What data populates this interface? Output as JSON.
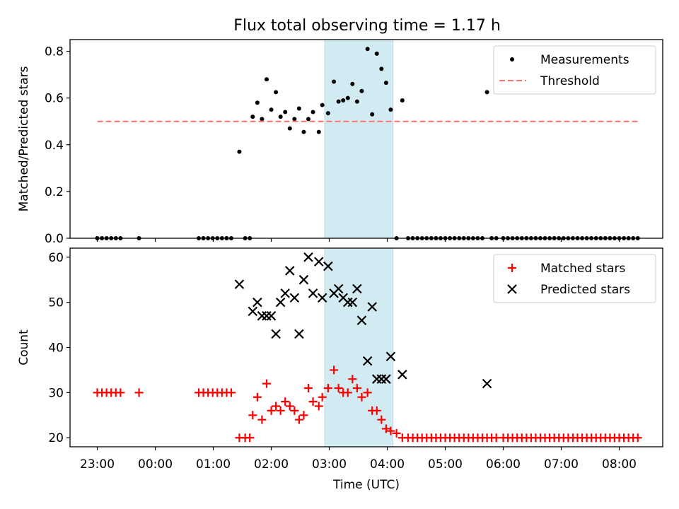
{
  "chart_data": [
    {
      "type": "scatter",
      "title": "Flux total observing time = 1.17 h",
      "ylabel": "Matched/Predicted stars",
      "ylim": [
        0,
        0.85
      ],
      "xlim_hours": [
        -0.47,
        9.75
      ],
      "yticks": [
        0.0,
        0.2,
        0.4,
        0.6,
        0.8
      ],
      "ytick_labels": [
        "0.0",
        "0.2",
        "0.4",
        "0.6",
        "0.8"
      ],
      "shaded_span": {
        "x0_hours": 3.92,
        "x1_hours": 5.1,
        "color": "#add8e6"
      },
      "legend_position": "top-right",
      "series": [
        {
          "name": "Measurements",
          "marker": "dot",
          "color": "#000000",
          "points": [
            [
              0.0,
              0
            ],
            [
              0.08,
              0
            ],
            [
              0.16,
              0
            ],
            [
              0.24,
              0
            ],
            [
              0.32,
              0
            ],
            [
              0.4,
              0
            ],
            [
              0.72,
              0
            ],
            [
              1.75,
              0
            ],
            [
              1.83,
              0
            ],
            [
              1.91,
              0
            ],
            [
              1.99,
              0
            ],
            [
              2.07,
              0
            ],
            [
              2.15,
              0
            ],
            [
              2.23,
              0
            ],
            [
              2.31,
              0
            ],
            [
              2.45,
              0.37
            ],
            [
              2.55,
              0
            ],
            [
              2.63,
              0
            ],
            [
              2.68,
              0.52
            ],
            [
              2.76,
              0.58
            ],
            [
              2.84,
              0.51
            ],
            [
              2.92,
              0.68
            ],
            [
              3.0,
              0.55
            ],
            [
              3.08,
              0.625
            ],
            [
              3.16,
              0.52
            ],
            [
              3.24,
              0.54
            ],
            [
              3.32,
              0.47
            ],
            [
              3.4,
              0.51
            ],
            [
              3.48,
              0.555
            ],
            [
              3.56,
              0.455
            ],
            [
              3.64,
              0.51
            ],
            [
              3.72,
              0.54
            ],
            [
              3.82,
              0.455
            ],
            [
              3.88,
              0.57
            ],
            [
              3.98,
              0.535
            ],
            [
              4.08,
              0.67
            ],
            [
              4.16,
              0.585
            ],
            [
              4.24,
              0.59
            ],
            [
              4.32,
              0.6
            ],
            [
              4.4,
              0.66
            ],
            [
              4.48,
              0.585
            ],
            [
              4.56,
              0.63
            ],
            [
              4.66,
              0.81
            ],
            [
              4.74,
              0.53
            ],
            [
              4.82,
              0.79
            ],
            [
              4.9,
              0.725
            ],
            [
              4.98,
              0.665
            ],
            [
              5.06,
              0.55
            ],
            [
              5.16,
              0
            ],
            [
              5.26,
              0.59
            ],
            [
              5.36,
              0
            ],
            [
              5.44,
              0
            ],
            [
              5.52,
              0
            ],
            [
              5.6,
              0
            ],
            [
              5.68,
              0
            ],
            [
              5.76,
              0
            ],
            [
              5.84,
              0
            ],
            [
              5.92,
              0
            ],
            [
              6.0,
              0
            ],
            [
              6.08,
              0
            ],
            [
              6.16,
              0
            ],
            [
              6.24,
              0
            ],
            [
              6.32,
              0
            ],
            [
              6.4,
              0
            ],
            [
              6.48,
              0
            ],
            [
              6.56,
              0
            ],
            [
              6.64,
              0
            ],
            [
              6.72,
              0.625
            ],
            [
              6.8,
              0
            ],
            [
              6.88,
              0
            ],
            [
              7.0,
              0
            ],
            [
              7.08,
              0
            ],
            [
              7.16,
              0
            ],
            [
              7.24,
              0
            ],
            [
              7.32,
              0
            ],
            [
              7.4,
              0
            ],
            [
              7.48,
              0
            ],
            [
              7.56,
              0
            ],
            [
              7.64,
              0
            ],
            [
              7.72,
              0
            ],
            [
              7.8,
              0
            ],
            [
              7.88,
              0
            ],
            [
              7.96,
              0
            ],
            [
              8.04,
              0
            ],
            [
              8.12,
              0
            ],
            [
              8.2,
              0
            ],
            [
              8.28,
              0
            ],
            [
              8.36,
              0
            ],
            [
              8.44,
              0
            ],
            [
              8.52,
              0
            ],
            [
              8.6,
              0
            ],
            [
              8.68,
              0
            ],
            [
              8.76,
              0
            ],
            [
              8.84,
              0
            ],
            [
              8.92,
              0
            ],
            [
              9.0,
              0
            ],
            [
              9.08,
              0
            ],
            [
              9.16,
              0
            ],
            [
              9.24,
              0
            ],
            [
              9.32,
              0
            ]
          ]
        },
        {
          "name": "Threshold",
          "style": "dashed-line",
          "color": "#ff7070",
          "points": [
            [
              0.0,
              0.5
            ],
            [
              9.32,
              0.5
            ]
          ]
        }
      ]
    },
    {
      "type": "scatter",
      "xlabel": "Time (UTC)",
      "ylabel": "Count",
      "ylim": [
        18,
        62
      ],
      "xlim_hours": [
        -0.47,
        9.75
      ],
      "yticks": [
        20,
        30,
        40,
        50,
        60
      ],
      "ytick_labels": [
        "20",
        "30",
        "40",
        "50",
        "60"
      ],
      "xticks_hours": [
        0,
        1,
        2,
        3,
        4,
        5,
        6,
        7,
        8,
        9
      ],
      "xtick_labels": [
        "23:00",
        "00:00",
        "01:00",
        "02:00",
        "03:00",
        "04:00",
        "05:00",
        "06:00",
        "07:00",
        "08:00"
      ],
      "shaded_span": {
        "x0_hours": 3.92,
        "x1_hours": 5.1,
        "color": "#add8e6"
      },
      "legend_position": "top-right",
      "series": [
        {
          "name": "Matched stars",
          "marker": "plus",
          "color": "#ff0000",
          "points": [
            [
              0.0,
              30
            ],
            [
              0.08,
              30
            ],
            [
              0.16,
              30
            ],
            [
              0.24,
              30
            ],
            [
              0.32,
              30
            ],
            [
              0.4,
              30
            ],
            [
              0.72,
              30
            ],
            [
              1.75,
              30
            ],
            [
              1.83,
              30
            ],
            [
              1.91,
              30
            ],
            [
              1.99,
              30
            ],
            [
              2.07,
              30
            ],
            [
              2.15,
              30
            ],
            [
              2.23,
              30
            ],
            [
              2.31,
              30
            ],
            [
              2.45,
              20
            ],
            [
              2.55,
              20
            ],
            [
              2.63,
              20
            ],
            [
              2.68,
              25
            ],
            [
              2.76,
              29
            ],
            [
              2.84,
              24
            ],
            [
              2.92,
              32
            ],
            [
              3.0,
              26
            ],
            [
              3.08,
              27
            ],
            [
              3.16,
              26
            ],
            [
              3.24,
              28
            ],
            [
              3.32,
              27
            ],
            [
              3.4,
              26
            ],
            [
              3.48,
              24
            ],
            [
              3.56,
              25
            ],
            [
              3.64,
              31
            ],
            [
              3.72,
              28
            ],
            [
              3.82,
              27
            ],
            [
              3.88,
              29
            ],
            [
              3.98,
              31
            ],
            [
              4.08,
              35
            ],
            [
              4.16,
              31
            ],
            [
              4.24,
              30
            ],
            [
              4.32,
              30
            ],
            [
              4.4,
              33
            ],
            [
              4.48,
              31
            ],
            [
              4.56,
              29
            ],
            [
              4.66,
              30
            ],
            [
              4.74,
              26
            ],
            [
              4.82,
              26
            ],
            [
              4.9,
              24
            ],
            [
              4.98,
              22
            ],
            [
              5.06,
              21.5
            ],
            [
              5.16,
              21
            ],
            [
              5.26,
              20
            ],
            [
              5.36,
              20
            ],
            [
              5.44,
              20
            ],
            [
              5.52,
              20
            ],
            [
              5.6,
              20
            ],
            [
              5.68,
              20
            ],
            [
              5.76,
              20
            ],
            [
              5.84,
              20
            ],
            [
              5.92,
              20
            ],
            [
              6.0,
              20
            ],
            [
              6.08,
              20
            ],
            [
              6.16,
              20
            ],
            [
              6.24,
              20
            ],
            [
              6.32,
              20
            ],
            [
              6.4,
              20
            ],
            [
              6.48,
              20
            ],
            [
              6.56,
              20
            ],
            [
              6.64,
              20
            ],
            [
              6.72,
              20
            ],
            [
              6.8,
              20
            ],
            [
              6.88,
              20
            ],
            [
              7.0,
              20
            ],
            [
              7.08,
              20
            ],
            [
              7.16,
              20
            ],
            [
              7.24,
              20
            ],
            [
              7.32,
              20
            ],
            [
              7.4,
              20
            ],
            [
              7.48,
              20
            ],
            [
              7.56,
              20
            ],
            [
              7.64,
              20
            ],
            [
              7.72,
              20
            ],
            [
              7.8,
              20
            ],
            [
              7.88,
              20
            ],
            [
              7.96,
              20
            ],
            [
              8.04,
              20
            ],
            [
              8.12,
              20
            ],
            [
              8.2,
              20
            ],
            [
              8.28,
              20
            ],
            [
              8.36,
              20
            ],
            [
              8.44,
              20
            ],
            [
              8.52,
              20
            ],
            [
              8.6,
              20
            ],
            [
              8.68,
              20
            ],
            [
              8.76,
              20
            ],
            [
              8.84,
              20
            ],
            [
              8.92,
              20
            ],
            [
              9.0,
              20
            ],
            [
              9.08,
              20
            ],
            [
              9.16,
              20
            ],
            [
              9.24,
              20
            ],
            [
              9.32,
              20
            ]
          ]
        },
        {
          "name": "Predicted stars",
          "marker": "x",
          "color": "#000000",
          "points": [
            [
              2.45,
              54
            ],
            [
              2.68,
              48
            ],
            [
              2.76,
              50
            ],
            [
              2.84,
              47
            ],
            [
              2.92,
              47
            ],
            [
              3.0,
              47
            ],
            [
              3.08,
              43
            ],
            [
              3.16,
              50
            ],
            [
              3.24,
              52
            ],
            [
              3.32,
              57
            ],
            [
              3.4,
              51
            ],
            [
              3.48,
              43
            ],
            [
              3.56,
              55
            ],
            [
              3.64,
              60
            ],
            [
              3.72,
              52
            ],
            [
              3.82,
              59
            ],
            [
              3.88,
              51
            ],
            [
              3.98,
              58
            ],
            [
              4.08,
              52
            ],
            [
              4.16,
              53
            ],
            [
              4.24,
              51
            ],
            [
              4.32,
              50
            ],
            [
              4.4,
              50
            ],
            [
              4.48,
              53
            ],
            [
              4.56,
              46
            ],
            [
              4.66,
              37
            ],
            [
              4.74,
              49
            ],
            [
              4.82,
              33
            ],
            [
              4.9,
              33
            ],
            [
              4.98,
              33
            ],
            [
              5.06,
              38
            ],
            [
              5.26,
              34
            ],
            [
              6.72,
              32
            ]
          ]
        }
      ]
    }
  ]
}
